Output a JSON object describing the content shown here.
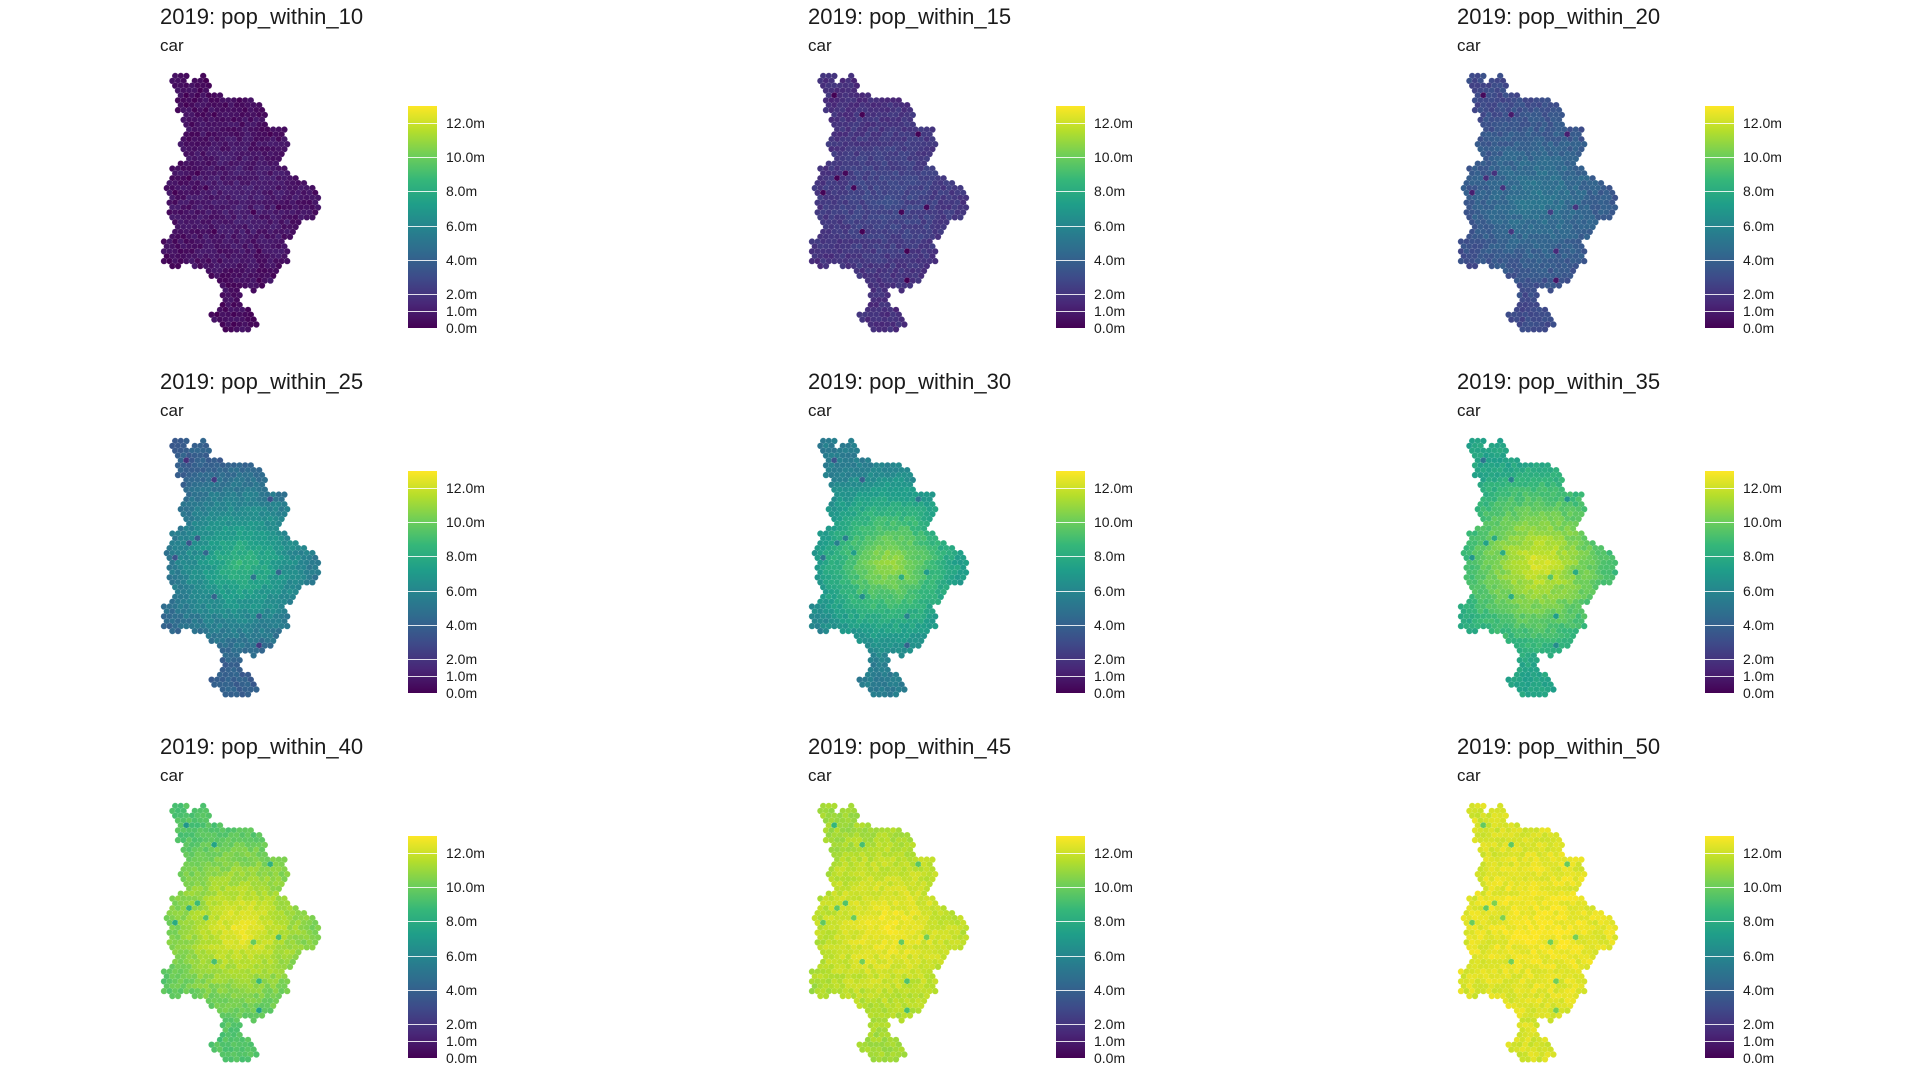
{
  "colorscale": [
    "#440154",
    "#482878",
    "#3e4a89",
    "#31688e",
    "#26828e",
    "#1f9e89",
    "#35b779",
    "#6ece58",
    "#b5de2b",
    "#fde725"
  ],
  "legend": {
    "ticks": [
      {
        "label": "12.0m",
        "value": 12
      },
      {
        "label": "10.0m",
        "value": 10
      },
      {
        "label": "8.0m",
        "value": 8
      },
      {
        "label": "6.0m",
        "value": 6
      },
      {
        "label": "4.0m",
        "value": 4
      },
      {
        "label": "2.0m",
        "value": 2
      },
      {
        "label": "1.0m",
        "value": 1
      },
      {
        "label": "0.0m",
        "value": 0
      }
    ],
    "max_value": 13.0
  },
  "panels": [
    {
      "title": "2019: pop_within_10",
      "subtitle": "car",
      "core_level": 0.08,
      "edge_level": 0.03
    },
    {
      "title": "2019: pop_within_15",
      "subtitle": "car",
      "core_level": 0.22,
      "edge_level": 0.13
    },
    {
      "title": "2019: pop_within_20",
      "subtitle": "car",
      "core_level": 0.4,
      "edge_level": 0.22
    },
    {
      "title": "2019: pop_within_25",
      "subtitle": "car",
      "core_level": 0.66,
      "edge_level": 0.3
    },
    {
      "title": "2019: pop_within_30",
      "subtitle": "car",
      "core_level": 0.86,
      "edge_level": 0.42
    },
    {
      "title": "2019: pop_within_35",
      "subtitle": "car",
      "core_level": 0.95,
      "edge_level": 0.58
    },
    {
      "title": "2019: pop_within_40",
      "subtitle": "car",
      "core_level": 0.98,
      "edge_level": 0.72
    },
    {
      "title": "2019: pop_within_45",
      "subtitle": "car",
      "core_level": 0.985,
      "edge_level": 0.86
    },
    {
      "title": "2019: pop_within_50",
      "subtitle": "car",
      "core_level": 0.99,
      "edge_level": 0.94
    }
  ]
}
